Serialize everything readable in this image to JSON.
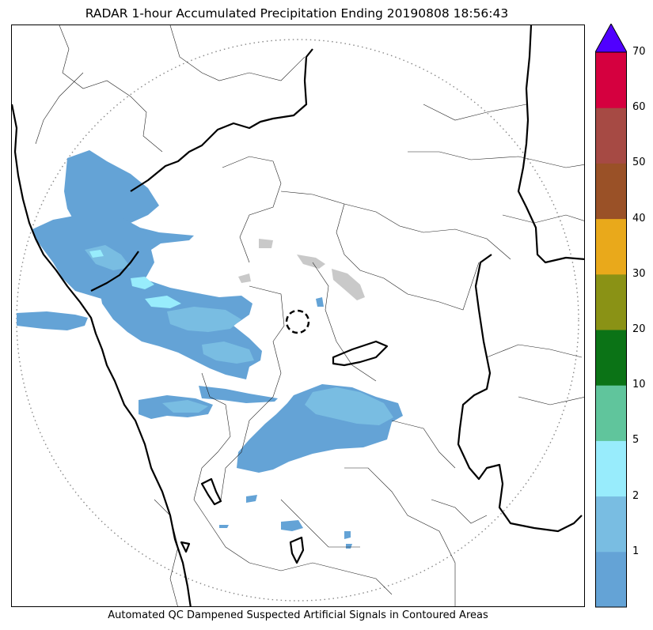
{
  "title": "RADAR 1-hour Accumulated Precipitation Ending 20190808 18:56:43",
  "footer": "Automated QC Dampened Suspected Artificial Signals in Contoured Areas",
  "colorbar": {
    "labels": [
      "1",
      "2",
      "5",
      "10",
      "20",
      "30",
      "40",
      "50",
      "60",
      "70"
    ],
    "colors": [
      "#64a3d6",
      "#79bde2",
      "#98ecfc",
      "#60c59c",
      "#0b7316",
      "#8a9215",
      "#e9a91b",
      "#9a5127",
      "#a64a44",
      "#d5003f"
    ],
    "extend_color": "#5000ff"
  },
  "colors": {
    "precip_light": "#64a3d6",
    "precip_medium": "#79bde2",
    "precip_heavy": "#98ecfc",
    "artificial_signal": "#c9c9c9",
    "coastline": "#000000",
    "range_ring": "#888888"
  }
}
